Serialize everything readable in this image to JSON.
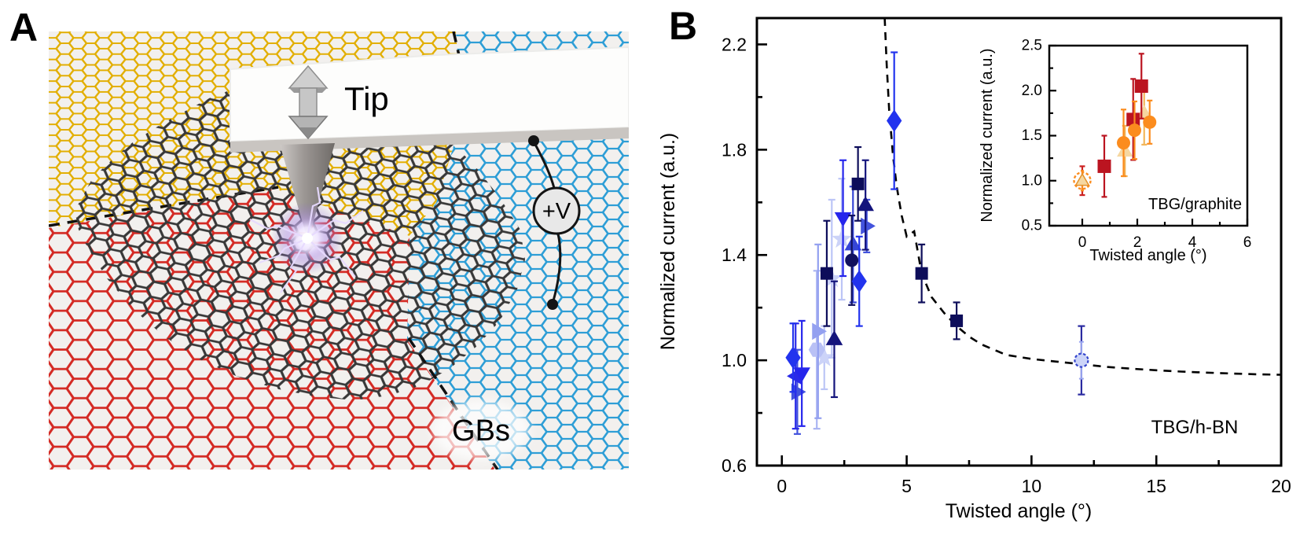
{
  "panelA": {
    "label": "A",
    "tip_label": "Tip",
    "voltage_label": "+V",
    "gbs_label": "GBs",
    "colors": {
      "yellow_lattice": "#e2ae00",
      "blue_lattice": "#2e9ed6",
      "red_lattice": "#d42a24",
      "dark_lattice": "#383838"
    }
  },
  "panelB": {
    "label": "B"
  },
  "chart_data": [
    {
      "id": "main",
      "type": "scatter",
      "title": "",
      "xlabel": "Twisted angle (°)",
      "ylabel": "Normalized current (a.u.)",
      "annotation": "TBG/h-BN",
      "xlim": [
        -1,
        20
      ],
      "ylim": [
        0.6,
        2.3
      ],
      "xticks": [
        0,
        5,
        10,
        15,
        20
      ],
      "xminor": [
        2.5,
        7.5,
        12.5,
        17.5
      ],
      "yticks": [
        0.6,
        1.0,
        1.4,
        1.8,
        2.2
      ],
      "yminor": [
        0.8,
        1.2,
        1.6,
        2.0
      ],
      "grid": false,
      "legend": "none",
      "series": [
        {
          "name": "pale-star",
          "marker": "star",
          "color": "#ccd3f8",
          "bar": "#bcc5f6",
          "size": 23,
          "points": [
            [
              1.7,
              1.01,
              0.12
            ],
            [
              2.0,
              1.31,
              0.3
            ],
            [
              2.4,
              1.46,
              0.23
            ]
          ]
        },
        {
          "name": "light-hexagon",
          "marker": "hexagon",
          "color": "#b9c1f5",
          "bar": "#aab4f2",
          "size": 19,
          "points": [
            [
              1.4,
              1.04,
              0.3
            ]
          ]
        },
        {
          "name": "light-triangle-right",
          "marker": "tri-right",
          "color": "#93a0f0",
          "bar": "#93a0f0",
          "size": 18,
          "points": [
            [
              1.45,
              1.11,
              0.33
            ]
          ]
        },
        {
          "name": "blue-triangle-right",
          "marker": "tri-right",
          "color": "#4353dd",
          "bar": "#4353dd",
          "size": 18,
          "points": [
            [
              0.62,
              0.88,
              0.16
            ],
            [
              3.4,
              1.51,
              0.1
            ]
          ]
        },
        {
          "name": "royal-triangle-left",
          "marker": "tri-left",
          "color": "#2a2ae8",
          "bar": "#2a2ae8",
          "size": 18,
          "points": [
            [
              0.55,
              0.94,
              0.2
            ]
          ]
        },
        {
          "name": "royal-triangle-down",
          "marker": "tri-down",
          "color": "#2525ec",
          "bar": "#2525ec",
          "size": 18,
          "points": [
            [
              0.8,
              0.95,
              0.2
            ],
            [
              2.45,
              1.54,
              0.22
            ]
          ]
        },
        {
          "name": "blue-triangle-up",
          "marker": "tri-up",
          "color": "#3646d6",
          "bar": "#3646d6",
          "size": 18,
          "points": [
            [
              2.85,
              1.44,
              0.22
            ]
          ]
        },
        {
          "name": "navy-triangle-up",
          "marker": "tri-up",
          "color": "#14147c",
          "bar": "#14147c",
          "size": 18,
          "points": [
            [
              2.1,
              1.08,
              0.22
            ],
            [
              3.35,
              1.59,
              0.17
            ]
          ]
        },
        {
          "name": "navy-circle",
          "marker": "circle",
          "color": "#11115e",
          "bar": "#11115e",
          "size": 17,
          "points": [
            [
              2.8,
              1.38,
              0.17
            ]
          ]
        },
        {
          "name": "navy-square",
          "marker": "square",
          "color": "#0d0d5a",
          "bar": "#0d0d5a",
          "size": 16,
          "points": [
            [
              1.8,
              1.33,
              0.2
            ],
            [
              3.05,
              1.67,
              0.14
            ],
            [
              5.6,
              1.33,
              0.11
            ],
            [
              7.0,
              1.15,
              0.07
            ]
          ]
        },
        {
          "name": "royal-diamond",
          "marker": "diamond",
          "color": "#2233ee",
          "bar": "#2233ee",
          "size": 21,
          "points": [
            [
              0.45,
              1.01,
              0.13
            ],
            [
              3.1,
              1.3,
              0.17
            ],
            [
              4.5,
              1.91,
              0.26
            ]
          ]
        },
        {
          "name": "reference-open-circle",
          "marker": "circle-dashed",
          "color": "#ccd4f8",
          "stroke": "#3344cc",
          "bar": "#2a2aa0",
          "bar2": "#9aa6f0",
          "size": 17,
          "points": [
            [
              12.0,
              1.0,
              0.13,
              0.07
            ]
          ]
        }
      ],
      "curve": {
        "style": "dashed",
        "color": "#000000",
        "points": [
          [
            4.12,
            2.3
          ],
          [
            4.2,
            2.12
          ],
          [
            4.3,
            1.95
          ],
          [
            4.45,
            1.78
          ],
          [
            4.6,
            1.66
          ],
          [
            4.8,
            1.55
          ],
          [
            5.0,
            1.47
          ],
          [
            5.3,
            1.49
          ],
          [
            5.6,
            1.33
          ],
          [
            6.0,
            1.24
          ],
          [
            6.5,
            1.18
          ],
          [
            7.0,
            1.13
          ],
          [
            7.5,
            1.09
          ],
          [
            8.0,
            1.06
          ],
          [
            9.0,
            1.02
          ],
          [
            10.0,
            1.005
          ],
          [
            11.0,
            0.995
          ],
          [
            12.0,
            0.985
          ],
          [
            13.0,
            0.975
          ],
          [
            14.0,
            0.968
          ],
          [
            15.0,
            0.962
          ],
          [
            16.0,
            0.957
          ],
          [
            17.0,
            0.953
          ],
          [
            18.0,
            0.95
          ],
          [
            19.0,
            0.947
          ],
          [
            20.0,
            0.945
          ]
        ]
      }
    },
    {
      "id": "inset",
      "type": "scatter",
      "title": "",
      "xlabel": "Twisted angle (°)",
      "ylabel": "Normalized current (a.u.)",
      "annotation": "TBG/graphite",
      "xlim": [
        -1.2,
        6
      ],
      "ylim": [
        0.5,
        2.5
      ],
      "xticks": [
        0,
        2,
        4,
        6
      ],
      "xminor": [
        1,
        3,
        5
      ],
      "yticks": [
        0.5,
        1.0,
        1.5,
        2.0,
        2.5
      ],
      "yminor": [
        0.75,
        1.25,
        1.75,
        2.25
      ],
      "grid": false,
      "legend": "none",
      "series": [
        {
          "name": "tan-triangle",
          "marker": "tri-up",
          "color": "#f6d7a0",
          "bar": "#f2b65a",
          "size": 17,
          "points": [
            [
              1.55,
              1.33,
              0.28
            ],
            [
              2.25,
              1.75,
              0.35
            ]
          ]
        },
        {
          "name": "red-square",
          "marker": "square",
          "color": "#bb1420",
          "bar": "#bb1420",
          "size": 17,
          "points": [
            [
              0.8,
              1.16,
              0.34
            ],
            [
              1.85,
              1.68,
              0.45
            ],
            [
              2.15,
              2.05,
              0.36
            ]
          ]
        },
        {
          "name": "orange-circle",
          "marker": "circle",
          "color": "#fb8c1e",
          "bar": "#fb8c1e",
          "size": 17,
          "points": [
            [
              1.5,
              1.42,
              0.37
            ],
            [
              1.9,
              1.56,
              0.32
            ],
            [
              2.45,
              1.65,
              0.24
            ]
          ]
        },
        {
          "name": "reference-tan-triangle",
          "marker": "tri-up",
          "color": "#f6d7a0",
          "stroke": "#e2922c",
          "overlay": "circle-dashed",
          "overlayColor": "#fb8c1e",
          "bar": "#cc2222",
          "bar2": "#fb8c1e",
          "size": 14,
          "points": [
            [
              0.0,
              1.0,
              0.16,
              0.11
            ]
          ]
        }
      ]
    }
  ]
}
